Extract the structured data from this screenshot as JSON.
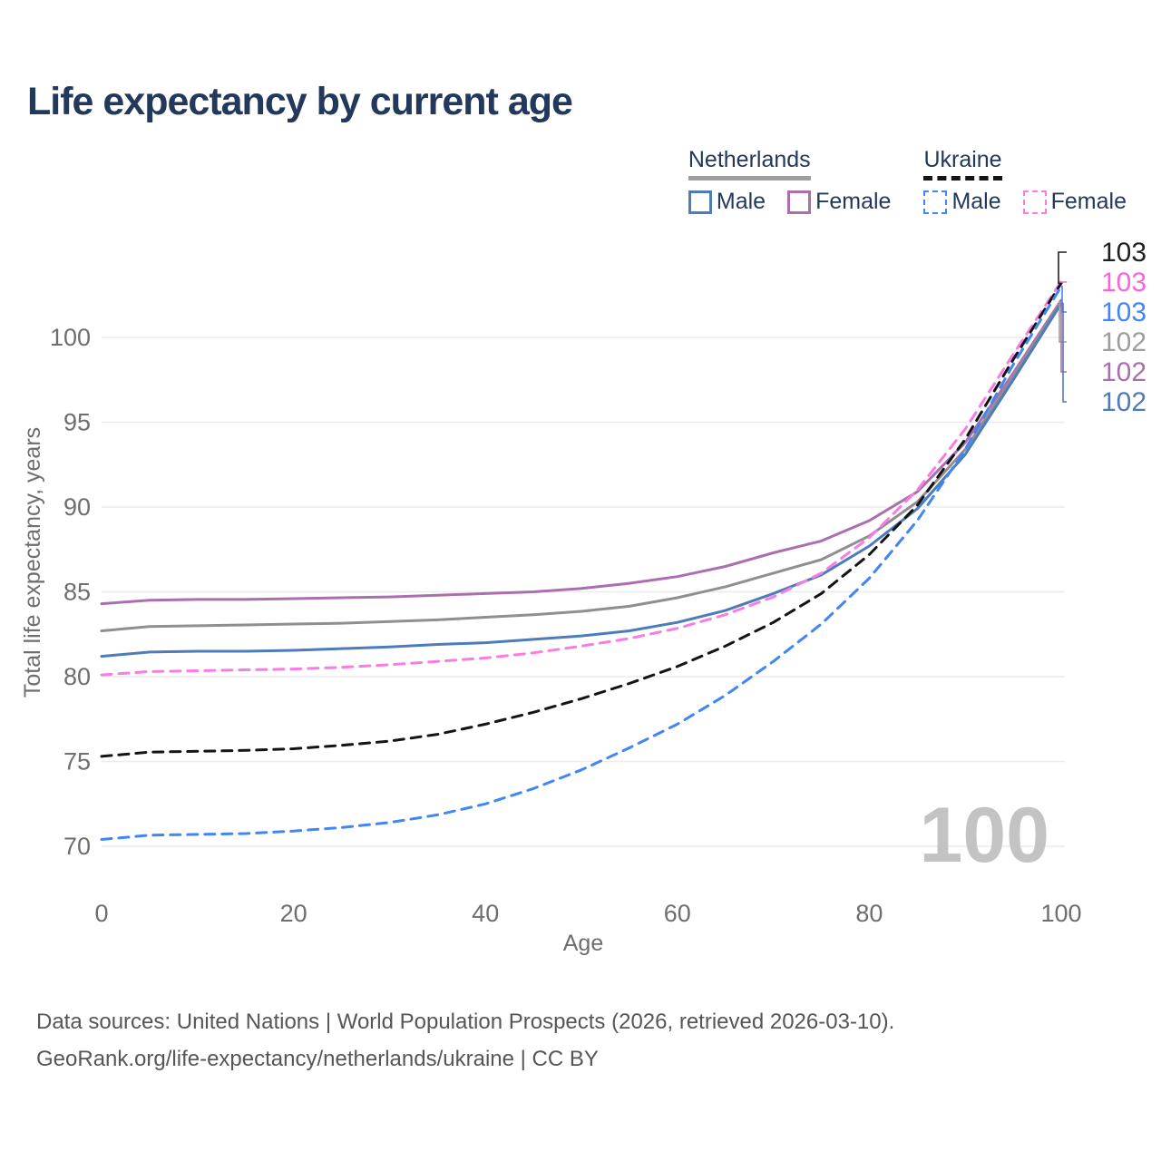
{
  "title": "Life expectancy by current age",
  "legend": {
    "groups": [
      {
        "country": "Netherlands",
        "line_style": "solid",
        "underline_color": "#9e9e9e",
        "items": [
          {
            "label": "Male",
            "color": "#4c7cba",
            "dashed": false
          },
          {
            "label": "Female",
            "color": "#ab6fb0",
            "dashed": false
          }
        ]
      },
      {
        "country": "Ukraine",
        "line_style": "dashed",
        "underline_color": "#141414",
        "items": [
          {
            "label": "Male",
            "color": "#4285f4",
            "dashed": true
          },
          {
            "label": "Female",
            "color": "#f97ce3",
            "dashed": true
          }
        ]
      }
    ]
  },
  "footer": {
    "line1": "Data sources: United Nations | World Population Prospects (2026, retrieved 2026-03-10).",
    "line2": "GeoRank.org/life-expectancy/netherlands/ukraine | CC BY"
  },
  "chart_data": {
    "type": "line",
    "title": "Life expectancy by current age",
    "xlabel": "Age",
    "ylabel": "Total life expectancy, years",
    "x_ticks": [
      0,
      20,
      40,
      60,
      80,
      100
    ],
    "y_ticks": [
      70,
      75,
      80,
      85,
      90,
      95,
      100
    ],
    "xlim": [
      0,
      100
    ],
    "ylim": [
      69,
      104
    ],
    "grid": "horizontal",
    "legend_position": "top-right",
    "age_marker_label": "100",
    "x": [
      0,
      5,
      10,
      15,
      20,
      25,
      30,
      35,
      40,
      45,
      50,
      55,
      60,
      65,
      70,
      75,
      80,
      85,
      90,
      95,
      100
    ],
    "series": [
      {
        "name": "Netherlands Female",
        "country": "Netherlands",
        "sex": "Female",
        "color": "#ab6fb0",
        "dashed": false,
        "values": [
          84.3,
          84.5,
          84.55,
          84.55,
          84.6,
          84.65,
          84.7,
          84.8,
          84.9,
          85.0,
          85.2,
          85.5,
          85.9,
          86.5,
          87.3,
          88.0,
          89.2,
          90.9,
          93.8,
          97.9,
          102.2
        ]
      },
      {
        "name": "Netherlands Combined",
        "country": "Netherlands",
        "sex": "Combined",
        "color": "#8f8f8f",
        "dashed": false,
        "values": [
          82.7,
          82.95,
          83.0,
          83.05,
          83.1,
          83.15,
          83.25,
          83.35,
          83.5,
          83.65,
          83.85,
          84.15,
          84.65,
          85.3,
          86.1,
          86.9,
          88.3,
          90.3,
          93.4,
          97.7,
          102.1
        ]
      },
      {
        "name": "Netherlands Male",
        "country": "Netherlands",
        "sex": "Male",
        "color": "#4c7cba",
        "dashed": false,
        "values": [
          81.2,
          81.45,
          81.5,
          81.5,
          81.55,
          81.65,
          81.75,
          81.9,
          82.0,
          82.2,
          82.4,
          82.7,
          83.2,
          83.9,
          84.9,
          86.0,
          87.7,
          89.9,
          93.1,
          97.5,
          102.0
        ]
      },
      {
        "name": "Ukraine Female",
        "country": "Ukraine",
        "sex": "Female",
        "color": "#f97ce3",
        "dashed": true,
        "values": [
          80.1,
          80.3,
          80.35,
          80.4,
          80.45,
          80.55,
          80.7,
          80.9,
          81.1,
          81.4,
          81.8,
          82.25,
          82.85,
          83.65,
          84.7,
          86.1,
          88.2,
          91.0,
          94.6,
          99.0,
          103.3
        ]
      },
      {
        "name": "Ukraine Combined",
        "country": "Ukraine",
        "sex": "Combined",
        "color": "#141414",
        "dashed": true,
        "values": [
          75.3,
          75.55,
          75.6,
          75.65,
          75.75,
          75.95,
          76.2,
          76.6,
          77.2,
          77.9,
          78.7,
          79.6,
          80.6,
          81.8,
          83.2,
          84.9,
          87.2,
          90.1,
          94.0,
          98.7,
          103.2
        ]
      },
      {
        "name": "Ukraine Male",
        "country": "Ukraine",
        "sex": "Male",
        "color": "#4285f4",
        "dashed": true,
        "values": [
          70.4,
          70.65,
          70.7,
          70.75,
          70.9,
          71.1,
          71.4,
          71.85,
          72.5,
          73.4,
          74.5,
          75.8,
          77.2,
          78.9,
          80.9,
          83.1,
          85.8,
          89.2,
          93.4,
          98.4,
          103.0
        ]
      }
    ],
    "end_labels": [
      {
        "series": 4,
        "flag": "ua",
        "text": "103",
        "color": "#1f1f1f"
      },
      {
        "series": 3,
        "flag": "ua",
        "text": "103",
        "color": "#f964de"
      },
      {
        "series": 5,
        "flag": "ua",
        "text": "103",
        "color": "#4285f4"
      },
      {
        "series": 1,
        "flag": "nl",
        "text": "102",
        "color": "#9e9e9e"
      },
      {
        "series": 0,
        "flag": "nl",
        "text": "102",
        "color": "#ab6fb0"
      },
      {
        "series": 2,
        "flag": "nl",
        "text": "102",
        "color": "#4c7cba"
      }
    ],
    "flag_colors": {
      "ua": [
        "#4187e2",
        "#fbd44c"
      ],
      "nl": [
        "#a3122f",
        "#ededed",
        "#1c3e9c"
      ]
    }
  }
}
